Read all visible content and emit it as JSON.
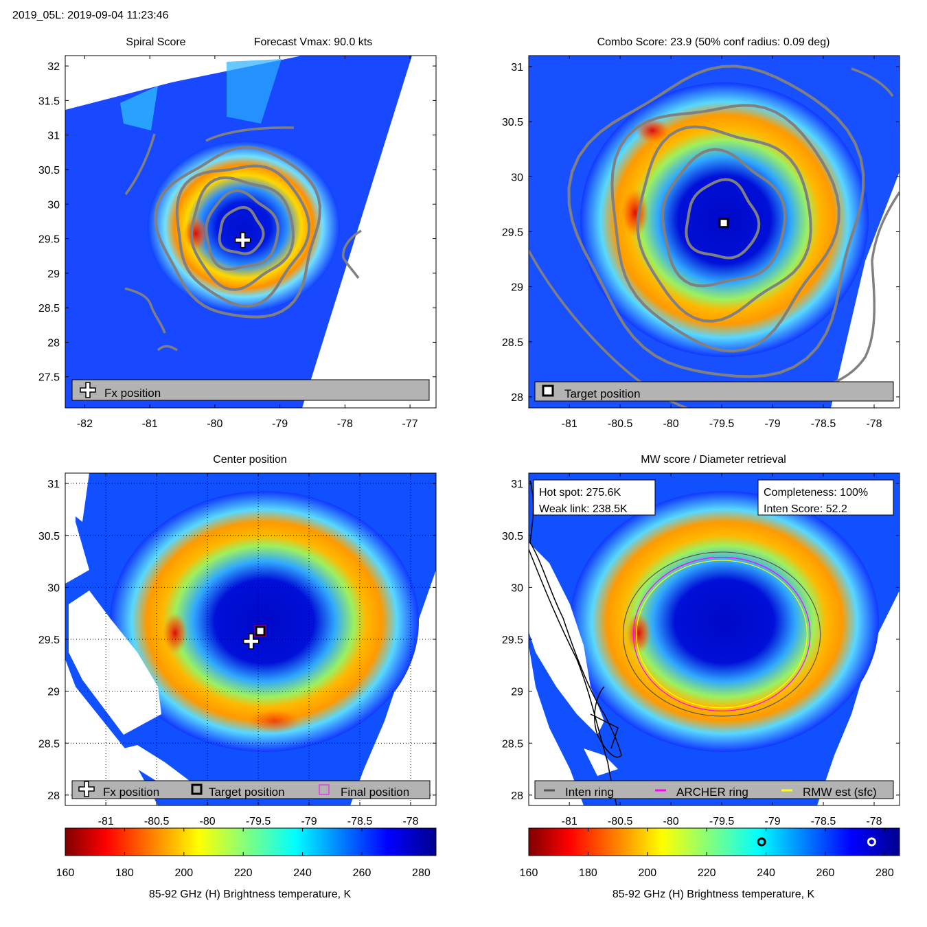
{
  "page_title": "2019_05L: 2019-09-04 11:23:46",
  "chart_data": [
    {
      "id": "spiral",
      "type": "heatmap",
      "title_left": "Spiral Score",
      "title_right": "Forecast Vmax: 90.0 kts",
      "xlim": [
        -82.3,
        -76.6
      ],
      "ylim": [
        27.05,
        32.15
      ],
      "xticks": [
        -82,
        -81,
        -80,
        -79,
        -78,
        -77
      ],
      "yticks": [
        27.5,
        28,
        28.5,
        29,
        29.5,
        30,
        30.5,
        31,
        31.5,
        32
      ],
      "center": [
        -79.6,
        29.6
      ],
      "marker": {
        "x": -79.57,
        "y": 29.48,
        "kind": "plus"
      },
      "contour_radii_deg": [
        0.33,
        0.55,
        0.78,
        1.0,
        1.22
      ],
      "legend": [
        {
          "kind": "plus",
          "label": "Fx position"
        }
      ]
    },
    {
      "id": "combo",
      "type": "heatmap",
      "title": "Combo Score: 23.9  (50% conf radius: 0.09 deg)",
      "xlim": [
        -81.4,
        -77.75
      ],
      "ylim": [
        27.9,
        31.1
      ],
      "xticks": [
        -81,
        -80.5,
        -80,
        -79.5,
        -79,
        -78.5,
        -78
      ],
      "yticks": [
        28,
        28.5,
        29,
        29.5,
        30,
        30.5,
        31
      ],
      "center": [
        -79.5,
        29.6
      ],
      "marker": {
        "x": -79.48,
        "y": 29.58,
        "kind": "square"
      },
      "contour_radii_deg": [
        0.35,
        0.6,
        0.85,
        1.1,
        1.4
      ],
      "legend": [
        {
          "kind": "square",
          "label": "Target position"
        }
      ]
    },
    {
      "id": "center",
      "type": "heatmap",
      "title": "Center position",
      "xlim": [
        -81.4,
        -77.75
      ],
      "ylim": [
        27.9,
        31.1
      ],
      "xticks": [
        -81,
        -80.5,
        -80,
        -79.5,
        -79,
        -78.5,
        -78
      ],
      "yticks": [
        28,
        28.5,
        29,
        29.5,
        30,
        30.5,
        31
      ],
      "center": [
        -79.5,
        29.55
      ],
      "markers": [
        {
          "x": -79.57,
          "y": 29.48,
          "kind": "plus"
        },
        {
          "x": -79.48,
          "y": 29.58,
          "kind": "square"
        }
      ],
      "legend": [
        {
          "kind": "plus",
          "label": "Fx position"
        },
        {
          "kind": "square",
          "label": "Target position"
        },
        {
          "kind": "magenta-square",
          "label": "Final position"
        }
      ],
      "colorbar": {
        "ticks": [
          160,
          180,
          200,
          220,
          240,
          260,
          280
        ],
        "range": [
          160,
          285
        ],
        "label": "85-92 GHz (H) Brightness temperature, K"
      }
    },
    {
      "id": "mw",
      "type": "heatmap",
      "title": "MW score / Diameter retrieval",
      "xlim": [
        -81.4,
        -77.75
      ],
      "ylim": [
        27.9,
        31.1
      ],
      "xticks": [
        -81,
        -80.5,
        -80,
        -79.5,
        -79,
        -78.5,
        -78
      ],
      "yticks": [
        28,
        28.5,
        29,
        29.5,
        30,
        30.5,
        31
      ],
      "center": [
        -79.5,
        29.55
      ],
      "rings": [
        {
          "name": "Inten ring",
          "color": "#555555",
          "rx": 0.97,
          "ry": 0.79
        },
        {
          "name": "ARCHER ring",
          "color": "#ff00ff",
          "rx": 0.87,
          "ry": 0.74
        },
        {
          "name": "RMW est (sfc)",
          "color": "#ffff00",
          "rx": 0.84,
          "ry": 0.71
        }
      ],
      "info_left": [
        "Hot spot: 275.6K",
        "Weak link: 238.5K"
      ],
      "info_right": [
        "Completeness: 100%",
        "Inten Score: 52.2"
      ],
      "legend": [
        {
          "kind": "line",
          "color": "#555555",
          "label": "Inten ring"
        },
        {
          "kind": "line",
          "color": "#ff00ff",
          "label": "ARCHER ring"
        },
        {
          "kind": "line",
          "color": "#ffff00",
          "label": "RMW est (sfc)"
        }
      ],
      "colorbar": {
        "ticks": [
          160,
          180,
          200,
          220,
          240,
          260,
          280
        ],
        "range": [
          160,
          285
        ],
        "label": "85-92 GHz (H) Brightness temperature, K",
        "markers": [
          238.5,
          275.6
        ]
      }
    }
  ]
}
